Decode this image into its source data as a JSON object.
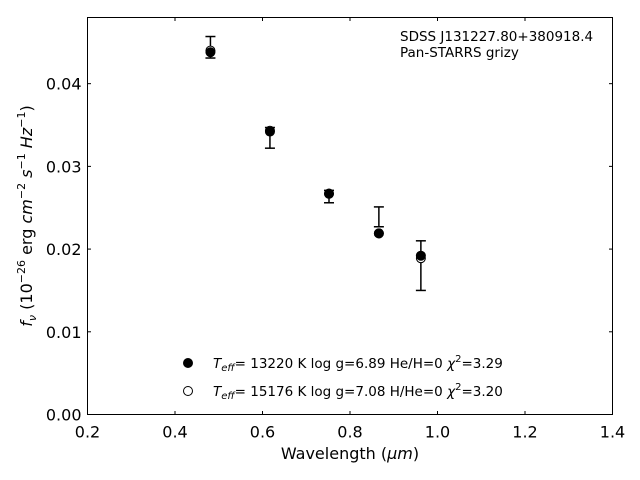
{
  "chart_data": {
    "type": "scatter",
    "xlabel_text": "Wavelength (",
    "xlabel_unit": "μm",
    "xlabel_close": ")",
    "ylabel_f": "f",
    "ylabel_sub": "ν",
    "ylabel_part1": " (10",
    "ylabel_exp1": "−26",
    "ylabel_part2": " erg ",
    "ylabel_cm": "cm",
    "ylabel_exp2": "−2",
    "ylabel_s": " s",
    "ylabel_exp3": "−1",
    "ylabel_hz": " Hz",
    "ylabel_exp4": "−1",
    "ylabel_close": ")",
    "xlim": [
      0.2,
      1.4
    ],
    "ylim": [
      0.0,
      0.048
    ],
    "xticks": [
      0.2,
      0.4,
      0.6,
      0.8,
      1.0,
      1.2,
      1.4
    ],
    "xtick_labels": [
      "0.2",
      "0.4",
      "0.6",
      "0.8",
      "1.0",
      "1.2",
      "1.4"
    ],
    "yticks": [
      0.0,
      0.01,
      0.02,
      0.03,
      0.04
    ],
    "ytick_labels": [
      "0.00",
      "0.01",
      "0.02",
      "0.03",
      "0.04"
    ],
    "annotation_lines": [
      "SDSS J131227.80+380918.4",
      "Pan-STARRS grizy"
    ],
    "observed": [
      {
        "x": 0.481,
        "y": 0.0444,
        "yerr_low": 0.0431,
        "yerr_high": 0.0457
      },
      {
        "x": 0.617,
        "y": 0.0345,
        "yerr_low": 0.0322,
        "yerr_high": 0.0347
      },
      {
        "x": 0.752,
        "y": 0.0267,
        "yerr_low": 0.0256,
        "yerr_high": 0.0271
      },
      {
        "x": 0.866,
        "y": 0.0239,
        "yerr_low": 0.0227,
        "yerr_high": 0.0251
      },
      {
        "x": 0.962,
        "y": 0.018,
        "yerr_low": 0.015,
        "yerr_high": 0.021
      }
    ],
    "series": [
      {
        "marker": "filled",
        "legend_teff": "= 13220 K  log g=6.89  He/H=0  ",
        "legend_chi": "=3.29",
        "x": [
          0.481,
          0.617,
          0.752,
          0.866,
          0.962
        ],
        "y": [
          0.0438,
          0.0342,
          0.0267,
          0.0219,
          0.0192
        ]
      },
      {
        "marker": "open",
        "legend_teff": "= 15176 K  log g=7.08  H/He=0  ",
        "legend_chi": "=3.20",
        "x": [
          0.481,
          0.617,
          0.752,
          0.866,
          0.962
        ],
        "y": [
          0.044,
          0.0343,
          0.0267,
          0.0219,
          0.0189
        ]
      }
    ],
    "legend_T": "T",
    "legend_eff": "eff",
    "legend_chi_symbol": "χ",
    "legend_chi_exp": "2",
    "legend_placement": "lower-center",
    "grid": false,
    "color": "#000000"
  }
}
